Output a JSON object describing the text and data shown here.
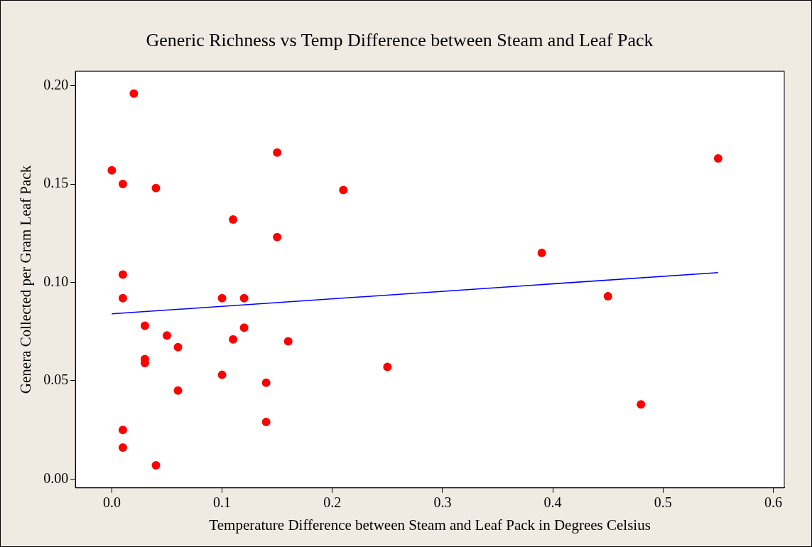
{
  "chart_data": {
    "type": "scatter",
    "title": "Generic Richness vs Temp Difference between Steam and Leaf Pack",
    "xlabel": "Temperature Difference between Steam and Leaf Pack in Degrees Celsius",
    "ylabel": "Genera Collected per Gram Leaf Pack",
    "x": [
      0,
      0.02,
      0.01,
      0.04,
      0.01,
      0.01,
      0.03,
      0.05,
      0.06,
      0.03,
      0.03,
      0.06,
      0.01,
      0.01,
      0.04,
      0.15,
      0.11,
      0.15,
      0.21,
      0.1,
      0.12,
      0.12,
      0.11,
      0.16,
      0.1,
      0.14,
      0.14,
      0.25,
      0.39,
      0.45,
      0.48,
      0.55
    ],
    "series": [
      {
        "type": "scatter",
        "color": "#ff0000",
        "marker": "circle",
        "values": [
          0.157,
          0.196,
          0.15,
          0.148,
          0.104,
          0.092,
          0.078,
          0.073,
          0.067,
          0.061,
          0.059,
          0.045,
          0.025,
          0.016,
          0.007,
          0.166,
          0.132,
          0.123,
          0.147,
          0.092,
          0.092,
          0.077,
          0.071,
          0.07,
          0.053,
          0.049,
          0.029,
          0.057,
          0.115,
          0.093,
          0.038,
          0.163
        ]
      },
      {
        "type": "line",
        "color": "#0000ff",
        "marker": "none",
        "line_style": "solid",
        "x": [
          0,
          0.55
        ],
        "values": [
          0.084,
          0.105
        ]
      }
    ],
    "xlim": [
      -0.033,
      0.61
    ],
    "ylim": [
      -0.0045,
      0.2074
    ],
    "xticks": [
      {
        "value": 0,
        "label": "0.0"
      },
      {
        "value": 0.1,
        "label": "0.1"
      },
      {
        "value": 0.2,
        "label": "0.2"
      },
      {
        "value": 0.3,
        "label": "0.3"
      },
      {
        "value": 0.4,
        "label": "0.4"
      },
      {
        "value": 0.5,
        "label": "0.5"
      },
      {
        "value": 0.6,
        "label": "0.6"
      }
    ],
    "yticks": [
      {
        "value": 0,
        "label": "0.00"
      },
      {
        "value": 0.05,
        "label": "0.05"
      },
      {
        "value": 0.1,
        "label": "0.10"
      },
      {
        "value": 0.15,
        "label": "0.15"
      },
      {
        "value": 0.2,
        "label": "0.20"
      }
    ],
    "grid": false,
    "legend": false
  }
}
